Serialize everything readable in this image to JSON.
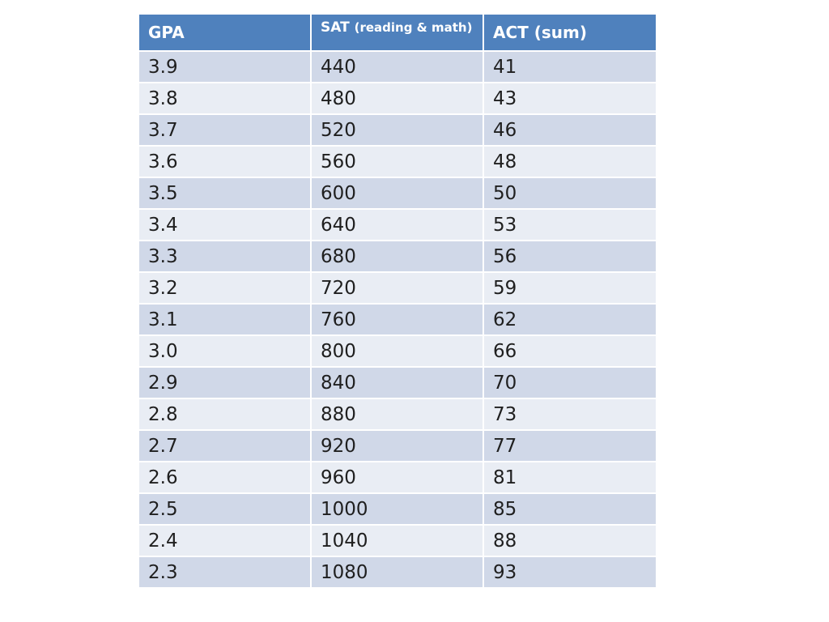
{
  "table": {
    "headers": {
      "gpa": "GPA",
      "sat_main": "SAT",
      "sat_sub": "(reading & math)",
      "act": "ACT (sum)"
    },
    "rows": [
      [
        "3.9",
        "440",
        "41"
      ],
      [
        "3.8",
        "480",
        "43"
      ],
      [
        "3.7",
        "520",
        "46"
      ],
      [
        "3.6",
        "560",
        "48"
      ],
      [
        "3.5",
        "600",
        "50"
      ],
      [
        "3.4",
        "640",
        "53"
      ],
      [
        "3.3",
        "680",
        "56"
      ],
      [
        "3.2",
        "720",
        "59"
      ],
      [
        "3.1",
        "760",
        "62"
      ],
      [
        "3.0",
        "800",
        "66"
      ],
      [
        "2.9",
        "840",
        "70"
      ],
      [
        "2.8",
        "880",
        "73"
      ],
      [
        "2.7",
        "920",
        "77"
      ],
      [
        "2.6",
        "960",
        "81"
      ],
      [
        "2.5",
        "1000",
        "85"
      ],
      [
        "2.4",
        "1040",
        "88"
      ],
      [
        "2.3",
        "1080",
        "93"
      ]
    ]
  },
  "colors": {
    "header_bg": "#4f81bd",
    "header_text": "#ffffff",
    "row_band_dark": "#d0d8e8",
    "row_band_light": "#e9edf4"
  }
}
